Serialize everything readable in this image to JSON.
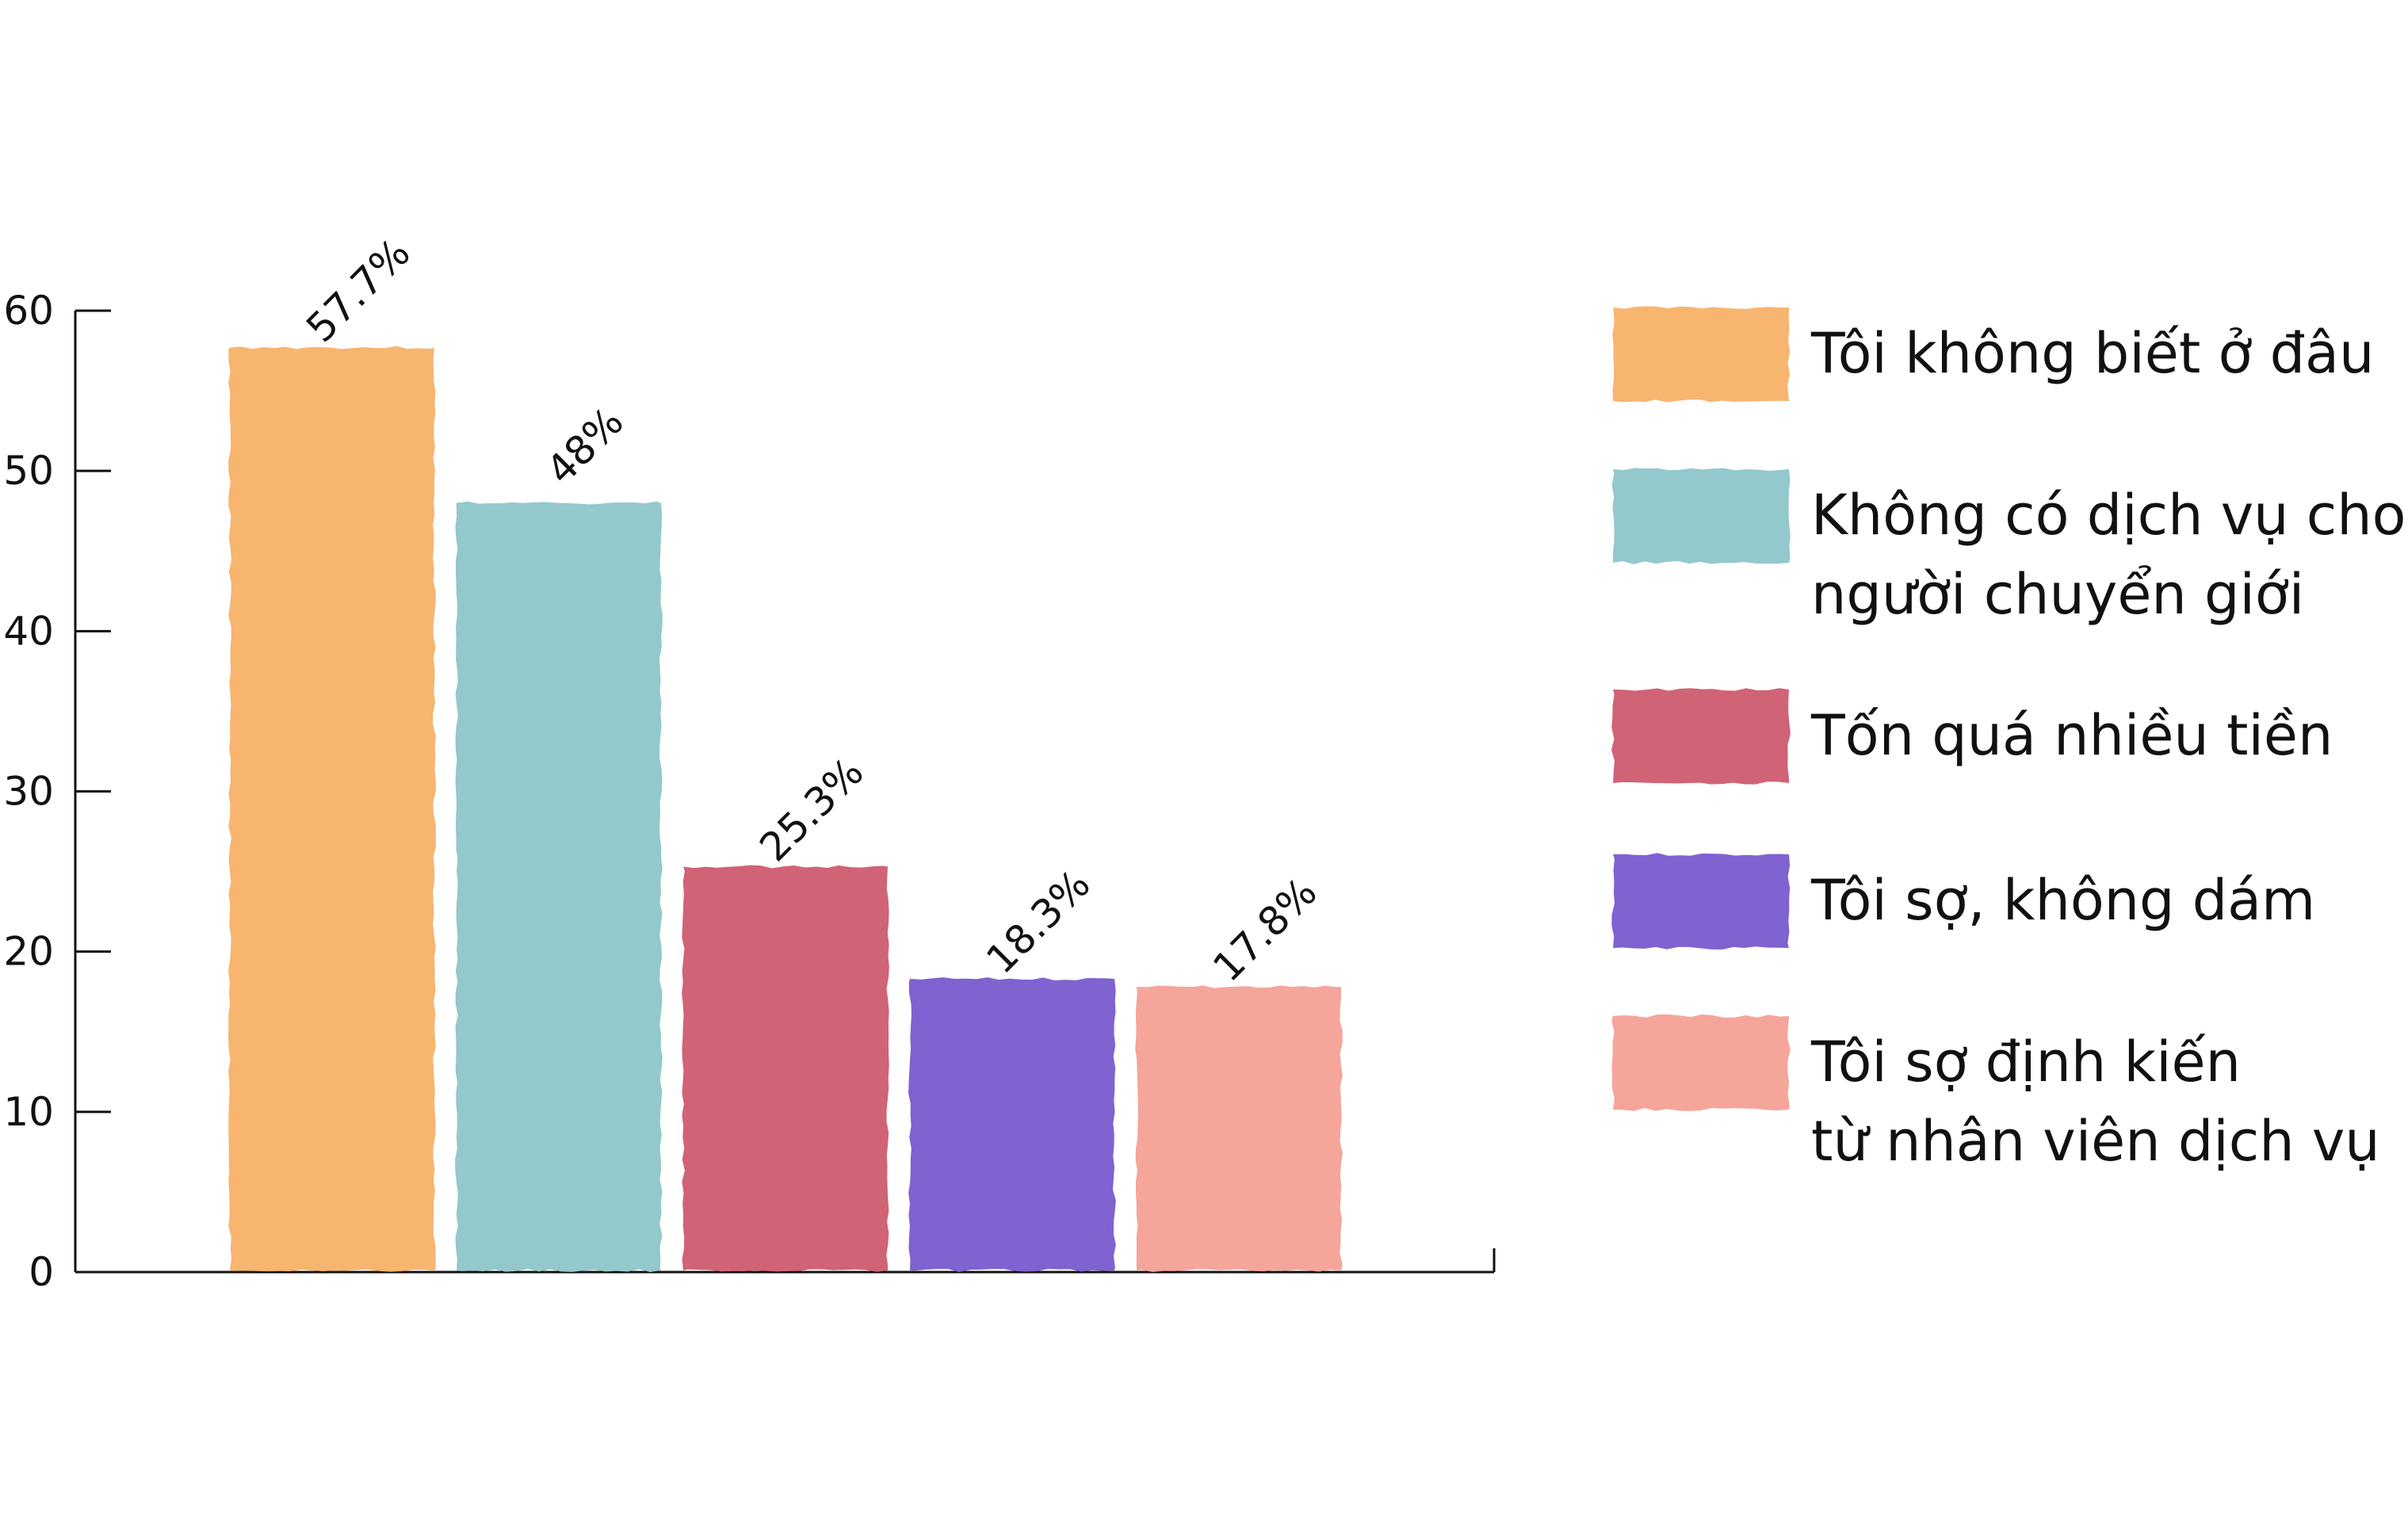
{
  "chart_data": {
    "type": "bar",
    "title": "",
    "xlabel": "",
    "ylabel": "",
    "ylim": [
      0,
      60
    ],
    "yticks": [
      0,
      10,
      20,
      30,
      40,
      50,
      60
    ],
    "categories": [
      "Tôi không biết ở đâu",
      "Không có dịch vụ cho người chuyển giới",
      "Tốn quá nhiều tiền",
      "Tôi sợ, không dám",
      "Tôi sợ định kiến từ nhân viên dịch vụ"
    ],
    "values": [
      57.7,
      48,
      25.3,
      18.3,
      17.8
    ],
    "data_labels": [
      "57.7%",
      "48%",
      "25.3%",
      "18.3%",
      "17.8%"
    ],
    "colors": [
      "#F7B56F",
      "#93C8CD",
      "#D06375",
      "#8062D0",
      "#F5A59A"
    ],
    "legend": {
      "position": "right",
      "items": [
        {
          "lines": [
            "Tôi không biết ở đâu"
          ],
          "color": "#F7B56F"
        },
        {
          "lines": [
            "Không có dịch vụ cho",
            "người chuyển giới"
          ],
          "color": "#93C8CD"
        },
        {
          "lines": [
            "Tốn quá nhiều tiền"
          ],
          "color": "#D06375"
        },
        {
          "lines": [
            "Tôi sợ, không dám"
          ],
          "color": "#8062D0"
        },
        {
          "lines": [
            "Tôi sợ định kiến",
            "từ nhân viên dịch vụ"
          ],
          "color": "#F5A59A"
        }
      ]
    },
    "grid": false
  }
}
